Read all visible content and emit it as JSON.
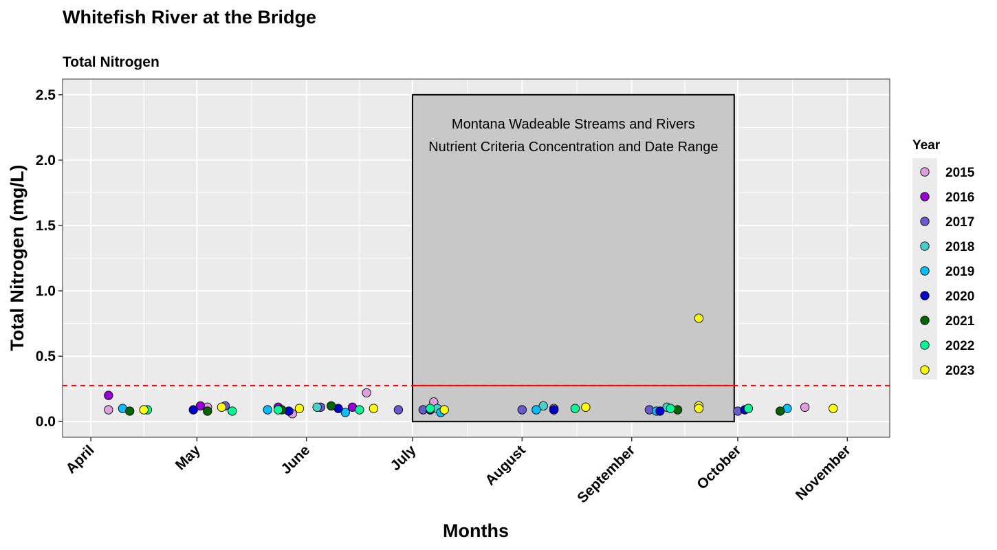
{
  "chart_data": {
    "type": "scatter",
    "title": "Whitefish River at the Bridge",
    "subtitle": "Total Nitrogen",
    "xlabel": "Months",
    "ylabel": "Total Nitrogen (mg/L)",
    "ylim": [
      -0.12,
      2.62
    ],
    "xlim": [
      "2023-03-24",
      "2023-11-13"
    ],
    "grid": true,
    "legend_position": "right",
    "legend_title": "Year",
    "x_ticks": [
      {
        "date": "2023-04-01",
        "label": "April"
      },
      {
        "date": "2023-05-01",
        "label": "May"
      },
      {
        "date": "2023-06-01",
        "label": "June"
      },
      {
        "date": "2023-07-01",
        "label": "July"
      },
      {
        "date": "2023-08-01",
        "label": "August"
      },
      {
        "date": "2023-09-01",
        "label": "September"
      },
      {
        "date": "2023-10-01",
        "label": "October"
      },
      {
        "date": "2023-11-01",
        "label": "November"
      }
    ],
    "y_ticks": [
      0.0,
      0.5,
      1.0,
      1.5,
      2.0,
      2.5
    ],
    "y_tick_labels": [
      "0.0",
      "0.5",
      "1.0",
      "1.5",
      "2.0",
      "2.5"
    ],
    "criteria": {
      "value": 0.275,
      "start": "2023-07-01",
      "end": "2023-09-30",
      "box_top": 2.5,
      "box_bottom": 0.0,
      "box_fill": "#c8c8c8",
      "line_color": "#ff0000",
      "annotation": [
        "Montana Wadeable Streams and Rivers",
        "Nutrient Criteria Concentration and Date Range"
      ]
    },
    "series": [
      {
        "name": "2015",
        "color": "#dda0dd",
        "points": [
          [
            "2023-04-06",
            0.09
          ],
          [
            "2023-05-04",
            0.11
          ],
          [
            "2023-05-28",
            0.06
          ],
          [
            "2023-06-18",
            0.22
          ],
          [
            "2023-07-07",
            0.15
          ],
          [
            "2023-08-10",
            0.1
          ],
          [
            "2023-10-20",
            0.11
          ]
        ]
      },
      {
        "name": "2016",
        "color": "#9400d3",
        "points": [
          [
            "2023-04-06",
            0.2
          ],
          [
            "2023-05-02",
            0.12
          ],
          [
            "2023-05-24",
            0.11
          ],
          [
            "2023-06-14",
            0.11
          ],
          [
            "2023-07-06",
            0.09
          ]
        ]
      },
      {
        "name": "2017",
        "color": "#6a5acd",
        "points": [
          [
            "2023-05-09",
            0.12
          ],
          [
            "2023-06-05",
            0.11
          ],
          [
            "2023-06-27",
            0.09
          ],
          [
            "2023-07-04",
            0.09
          ],
          [
            "2023-08-01",
            0.09
          ],
          [
            "2023-08-10",
            0.09
          ],
          [
            "2023-09-06",
            0.09
          ],
          [
            "2023-10-01",
            0.08
          ]
        ]
      },
      {
        "name": "2018",
        "color": "#48d1cc",
        "points": [
          [
            "2023-06-04",
            0.11
          ],
          [
            "2023-07-08",
            0.1
          ],
          [
            "2023-08-07",
            0.12
          ],
          [
            "2023-09-11",
            0.11
          ],
          [
            "2023-10-04",
            0.1
          ]
        ]
      },
      {
        "name": "2019",
        "color": "#00bfff",
        "points": [
          [
            "2023-04-10",
            0.1
          ],
          [
            "2023-05-21",
            0.09
          ],
          [
            "2023-06-12",
            0.07
          ],
          [
            "2023-07-09",
            0.07
          ],
          [
            "2023-08-05",
            0.09
          ],
          [
            "2023-09-08",
            0.08
          ],
          [
            "2023-10-15",
            0.1
          ]
        ]
      },
      {
        "name": "2020",
        "color": "#0000cd",
        "points": [
          [
            "2023-04-30",
            0.09
          ],
          [
            "2023-05-27",
            0.08
          ],
          [
            "2023-06-10",
            0.1
          ],
          [
            "2023-07-06",
            0.09
          ],
          [
            "2023-08-10",
            0.09
          ],
          [
            "2023-09-09",
            0.08
          ],
          [
            "2023-10-03",
            0.09
          ]
        ]
      },
      {
        "name": "2021",
        "color": "#006400",
        "points": [
          [
            "2023-04-12",
            0.08
          ],
          [
            "2023-05-04",
            0.08
          ],
          [
            "2023-05-25",
            0.09
          ],
          [
            "2023-06-08",
            0.12
          ],
          [
            "2023-09-14",
            0.09
          ],
          [
            "2023-10-13",
            0.08
          ]
        ]
      },
      {
        "name": "2022",
        "color": "#00fa9a",
        "points": [
          [
            "2023-04-17",
            0.09
          ],
          [
            "2023-05-11",
            0.08
          ],
          [
            "2023-05-24",
            0.09
          ],
          [
            "2023-06-16",
            0.09
          ],
          [
            "2023-07-06",
            0.1
          ],
          [
            "2023-08-16",
            0.1
          ],
          [
            "2023-09-12",
            0.1
          ],
          [
            "2023-10-04",
            0.1
          ]
        ]
      },
      {
        "name": "2023",
        "color": "#ffff00",
        "points": [
          [
            "2023-04-16",
            0.09
          ],
          [
            "2023-05-08",
            0.11
          ],
          [
            "2023-05-30",
            0.1
          ],
          [
            "2023-06-20",
            0.1
          ],
          [
            "2023-07-10",
            0.09
          ],
          [
            "2023-08-19",
            0.11
          ],
          [
            "2023-09-20",
            0.79
          ],
          [
            "2023-09-20",
            0.12
          ],
          [
            "2023-09-20",
            0.1
          ],
          [
            "2023-10-28",
            0.1
          ]
        ]
      }
    ]
  }
}
